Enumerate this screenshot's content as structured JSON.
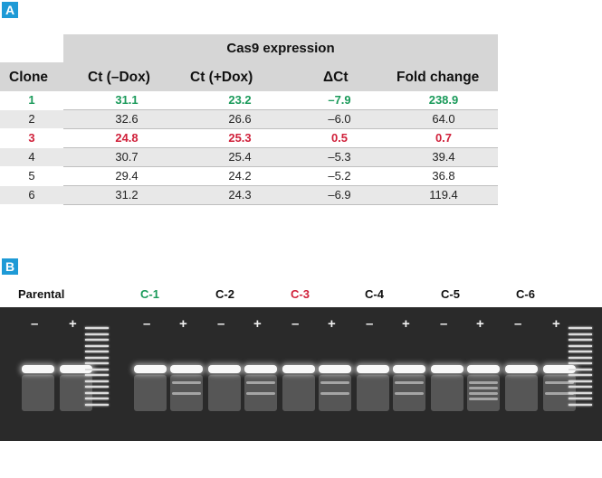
{
  "panels": {
    "a": "A",
    "b": "B"
  },
  "table": {
    "group_header": "Cas9 expression",
    "columns": [
      "Clone",
      "Ct (–Dox)",
      "Ct (+Dox)",
      "ΔCt",
      "Fold change"
    ],
    "rows": [
      {
        "clone": "1",
        "ct_minus": "31.1",
        "ct_plus": "23.2",
        "dct": "–7.9",
        "fold": "238.9",
        "highlight": "#1a9a5a"
      },
      {
        "clone": "2",
        "ct_minus": "32.6",
        "ct_plus": "26.6",
        "dct": "–6.0",
        "fold": "64.0"
      },
      {
        "clone": "3",
        "ct_minus": "24.8",
        "ct_plus": "25.3",
        "dct": "0.5",
        "fold": "0.7",
        "highlight": "#d0203a"
      },
      {
        "clone": "4",
        "ct_minus": "30.7",
        "ct_plus": "25.4",
        "dct": "–5.3",
        "fold": "39.4"
      },
      {
        "clone": "5",
        "ct_minus": "29.4",
        "ct_plus": "24.2",
        "dct": "–5.2",
        "fold": "36.8"
      },
      {
        "clone": "6",
        "ct_minus": "31.2",
        "ct_plus": "24.3",
        "dct": "–6.9",
        "fold": "119.4"
      }
    ]
  },
  "gel": {
    "labels": [
      {
        "text": "Parental",
        "color": "#111111"
      },
      {
        "text": "C-1",
        "color": "#1a9a5a"
      },
      {
        "text": "C-2",
        "color": "#111111"
      },
      {
        "text": "C-3",
        "color": "#d0203a"
      },
      {
        "text": "C-4",
        "color": "#111111"
      },
      {
        "text": "C-5",
        "color": "#111111"
      },
      {
        "text": "C-6",
        "color": "#111111"
      }
    ],
    "minus_sign": "–",
    "plus_sign": "+"
  }
}
